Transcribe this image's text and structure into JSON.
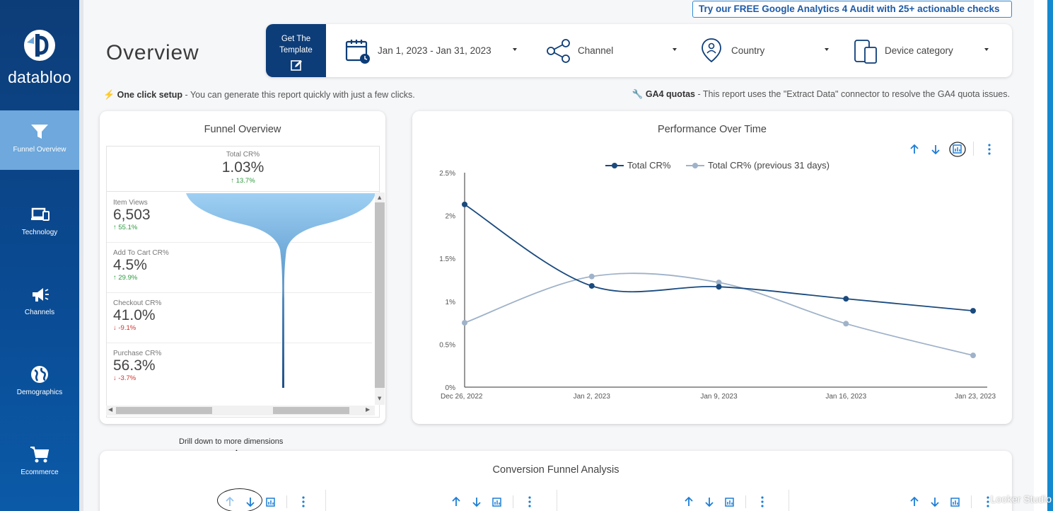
{
  "promo": {
    "text": "Try our FREE Google Analytics 4 Audit with 25+ actionable checks →"
  },
  "brand": {
    "name": "databloo"
  },
  "sidebar": {
    "items": [
      {
        "label": "Funnel Overview",
        "icon": "funnel-icon"
      },
      {
        "label": "Technology",
        "icon": "devices-icon"
      },
      {
        "label": "Channels",
        "icon": "megaphone-icon"
      },
      {
        "label": "Demographics",
        "icon": "globe-icon"
      },
      {
        "label": "Ecommerce",
        "icon": "cart-icon"
      }
    ]
  },
  "header": {
    "title": "Overview",
    "template_line1": "Get The",
    "template_line2": "Template",
    "date_range": "Jan 1, 2023 - Jan 31, 2023",
    "channel": "Channel",
    "country": "Country",
    "device": "Device category"
  },
  "notes": {
    "left_bold": "One click setup",
    "left_text": " - You can generate this report quickly with just a few clicks.",
    "right_bold": "GA4 quotas",
    "right_text": " - This report uses the \"Extract Data\" connector to resolve the GA4 quota issues."
  },
  "funnel": {
    "title": "Funnel Overview",
    "total_label": "Total CR%",
    "total_value": "1.03%",
    "total_delta": "↑ 13.7%",
    "stages": [
      {
        "label": "Item Views",
        "value": "6,503",
        "delta": "↑ 55.1%",
        "dir": "up"
      },
      {
        "label": "Add To Cart CR%",
        "value": "4.5%",
        "delta": "↑ 29.9%",
        "dir": "up"
      },
      {
        "label": "Checkout CR%",
        "value": "41.0%",
        "delta": "↓ -9.1%",
        "dir": "down"
      },
      {
        "label": "Purchase CR%",
        "value": "56.3%",
        "delta": "↓ -3.7%",
        "dir": "down"
      }
    ]
  },
  "chart_data": {
    "type": "line",
    "title": "Performance Over Time",
    "x": [
      "Dec 26, 2022",
      "Jan 2, 2023",
      "Jan 9, 2023",
      "Jan 16, 2023",
      "Jan 23, 2023"
    ],
    "series": [
      {
        "name": "Total CR%",
        "values": [
          2.13,
          1.18,
          1.17,
          1.03,
          0.89
        ],
        "color": "#1a4a7e"
      },
      {
        "name": "Total CR% (previous 31 days)",
        "values": [
          0.75,
          1.29,
          1.22,
          0.74,
          0.37
        ],
        "color": "#9fb2c9"
      }
    ],
    "yticks": [
      "0%",
      "0.5%",
      "1%",
      "1.5%",
      "2%",
      "2.5%"
    ],
    "ylim": [
      0,
      2.5
    ],
    "legend": "top-center",
    "grid": false
  },
  "drill_note": "Drill down to more dimensions",
  "conversion": {
    "title": "Conversion Funnel Analysis"
  },
  "watermark": "Looker Studio",
  "colors": {
    "sidebar": "#0d3d78",
    "accent": "#1c7ed6",
    "active": "#6ea8dc"
  }
}
